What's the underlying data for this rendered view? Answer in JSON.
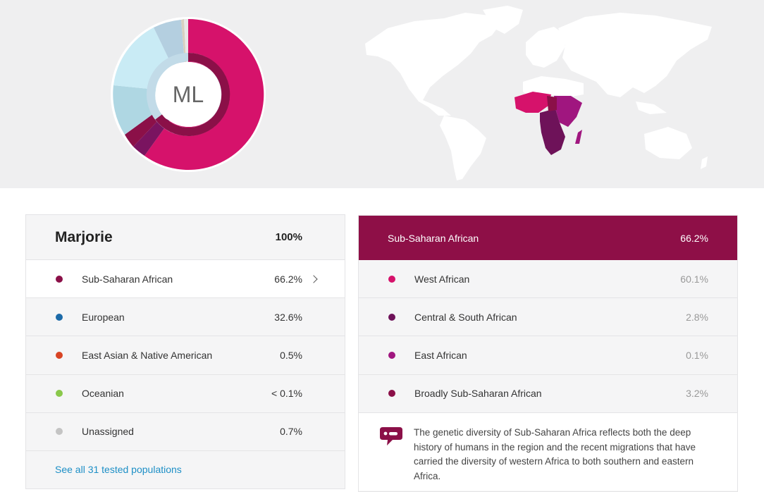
{
  "profile": {
    "initials": "ML",
    "name": "Marjorie",
    "total": "100%"
  },
  "colors": {
    "sub_saharan": "#8b1048",
    "west_african": "#d6126b",
    "central_south": "#6e1259",
    "east_african": "#a0167f",
    "european": "#1c6aa8",
    "east_asian": "#d84424",
    "oceanian": "#8ac84b",
    "unassigned": "#c4c4c4",
    "link": "#1d8fc6"
  },
  "populations": [
    {
      "label": "Sub-Saharan African",
      "value": "66.2%",
      "color": "#8b1048"
    },
    {
      "label": "European",
      "value": "32.6%",
      "color": "#1c6aa8"
    },
    {
      "label": "East Asian & Native American",
      "value": "0.5%",
      "color": "#d84424"
    },
    {
      "label": "Oceanian",
      "value": "< 0.1%",
      "color": "#8ac84b"
    },
    {
      "label": "Unassigned",
      "value": "0.7%",
      "color": "#c4c4c4"
    }
  ],
  "see_all_link": "See all 31 tested populations",
  "detail": {
    "title": "Sub-Saharan African",
    "total": "66.2%",
    "items": [
      {
        "label": "West African",
        "value": "60.1%",
        "color": "#d6126b"
      },
      {
        "label": "Central & South African",
        "value": "2.8%",
        "color": "#6e1259"
      },
      {
        "label": "East African",
        "value": "0.1%",
        "color": "#a0167f"
      },
      {
        "label": "Broadly Sub-Saharan African",
        "value": "3.2%",
        "color": "#8b1048"
      }
    ],
    "note": "The genetic diversity of Sub-Saharan Africa reflects both the deep history of humans in the region and the recent migrations that have carried the diversity of western Africa to both southern and eastern Africa.",
    "note_icon": "chat-bubble-icon"
  },
  "map": {
    "icon": "world-map-icon",
    "highlight": "sub-saharan-africa"
  }
}
